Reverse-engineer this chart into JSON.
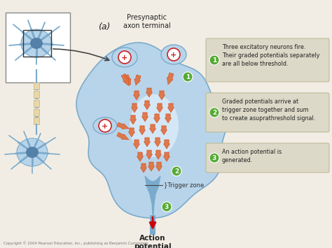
{
  "bg_color": "#f2ede4",
  "copyright": "Copyright © 2004 Pearson Education, Inc., publishing as Benjamin Cummings",
  "label_a": "(a)",
  "label_presynaptic": "Presynaptic\naxon terminal",
  "label_trigger": "}Trigger zone",
  "label_action": "Action\npotential",
  "steps": [
    "Three excitatory neurons fire.\nTheir graded potentials separately\nare all below threshold.",
    "Graded potentials arrive at\ntrigger zone together and sum\nto create asuprathreshold signal.",
    "An action potential is\ngenerated."
  ],
  "neuron_body_color": "#b8d4ea",
  "neuron_body_light": "#cce0f0",
  "neuron_dark_color": "#7aabcc",
  "neuron_spine_color": "#7aabcc",
  "neuron_nucleus_color": "#5580a8",
  "arrow_color_orange": "#d4501a",
  "arrow_fill_orange": "#e07040",
  "arrow_color_red": "#cc0000",
  "plus_circle_fill": "#ffffff",
  "plus_circle_edge": "#cc2222",
  "plus_color": "#cc2222",
  "green_circle_color": "#55aa33",
  "step_box_color": "#ddd9c8",
  "step_box_edge": "#bbbb99",
  "axon_myellin_color": "#e8d8a8",
  "white_glow": "#e8f4ff"
}
